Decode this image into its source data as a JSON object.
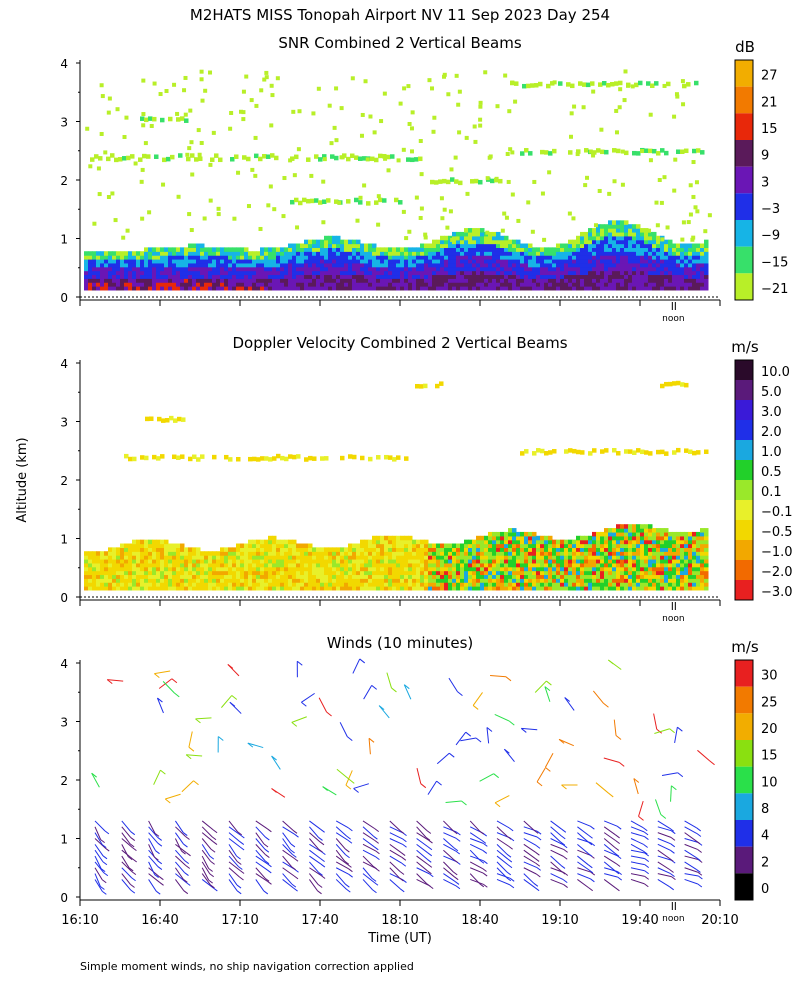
{
  "figure_title": "M2HATS MISS Tonopah Airport NV  11 Sep 2023 Day 254",
  "y_axis_label": "Altitude (km)",
  "x_axis_label": "Time (UT)",
  "footnote": "Simple moment winds, no ship navigation correction applied",
  "noon_label": "noon",
  "chart_data": [
    {
      "type": "heatmap",
      "title": "SNR Combined 2 Vertical Beams",
      "colorbar_unit": "dB",
      "colorbar_labels": [
        "27",
        "21",
        "15",
        "9",
        "3",
        "−3",
        "−9",
        "−15",
        "−21"
      ],
      "colorbar_colors": [
        "#f2ad00",
        "#f27a00",
        "#e8280a",
        "#5a1a5a",
        "#6a16b5",
        "#1f2fe8",
        "#16b4e6",
        "#37e06a",
        "#b8ef28"
      ],
      "y_ticks": [
        "0",
        "1",
        "2",
        "3",
        "4"
      ],
      "ylim": [
        0,
        4
      ],
      "x_range": [
        "16:10",
        "20:10"
      ],
      "layers": [
        {
          "name": "low-level boundary layer",
          "altitude_km": [
            0.1,
            0.9
          ],
          "typical_db": [
            -3,
            15
          ]
        },
        {
          "name": "patches",
          "altitude_km": [
            1.5,
            3.8
          ],
          "typical_db": [
            -21,
            -15
          ]
        }
      ]
    },
    {
      "type": "heatmap",
      "title": "Doppler Velocity Combined 2 Vertical Beams",
      "colorbar_unit": "m/s",
      "colorbar_labels": [
        "10.0",
        "5.0",
        "3.0",
        "2.0",
        "1.0",
        "0.5",
        "0.1",
        "−0.1",
        "−0.5",
        "−1.0",
        "−2.0",
        "−3.0"
      ],
      "colorbar_colors": [
        "#2a0a2a",
        "#5a1a7a",
        "#3a1ad8",
        "#1f2fe8",
        "#1aa8e0",
        "#22d02a",
        "#9ae82a",
        "#e8f02a",
        "#f2d800",
        "#f2a800",
        "#f26a00",
        "#e82020"
      ],
      "y_ticks": [
        "0",
        "1",
        "2",
        "3",
        "4"
      ],
      "ylim": [
        0,
        4
      ],
      "x_range": [
        "16:10",
        "20:10"
      ]
    },
    {
      "type": "scatter",
      "title": "Winds (10 minutes)",
      "colorbar_unit": "m/s",
      "colorbar_labels": [
        "30",
        "25",
        "20",
        "15",
        "10",
        "8",
        "4",
        "2",
        "0"
      ],
      "colorbar_colors": [
        "#e82020",
        "#f27a00",
        "#f2ad00",
        "#8ae010",
        "#2ae04a",
        "#1aa8e0",
        "#1f2fe8",
        "#5a1a7a",
        "#000000"
      ],
      "y_ticks": [
        "0",
        "1",
        "2",
        "3",
        "4"
      ],
      "x_ticks": [
        "16:10",
        "16:40",
        "17:10",
        "17:40",
        "18:10",
        "18:40",
        "19:10",
        "19:40",
        "20:10"
      ],
      "ylim": [
        0,
        4
      ],
      "x_range": [
        "16:10",
        "20:10"
      ],
      "interval_minutes": 10
    }
  ]
}
